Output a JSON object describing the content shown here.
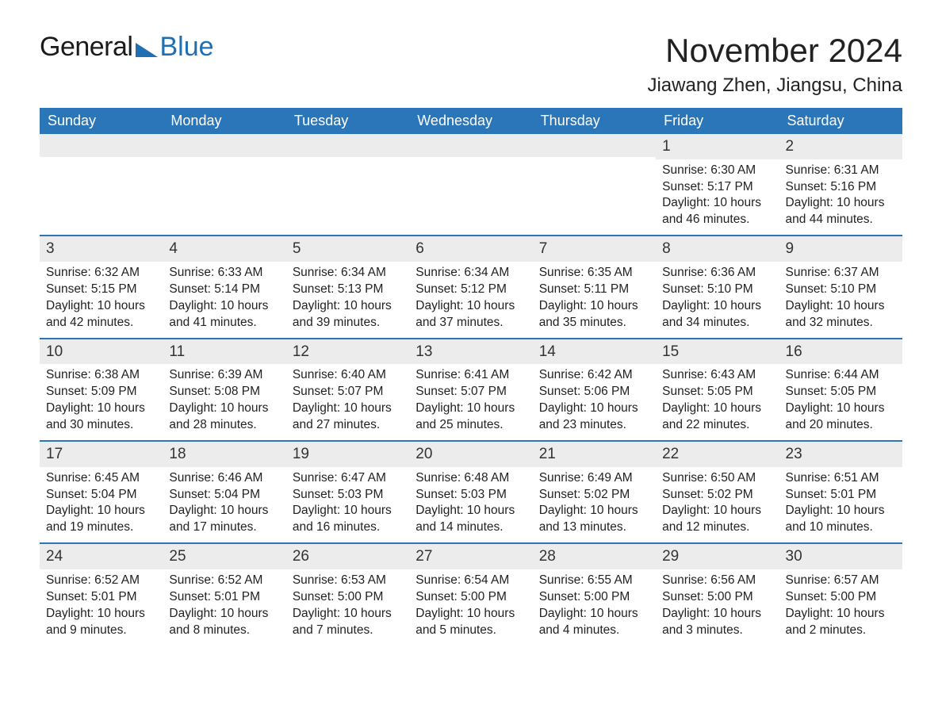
{
  "logo": {
    "text1": "General",
    "text2": "Blue"
  },
  "title": "November 2024",
  "location": "Jiawang Zhen, Jiangsu, China",
  "colors": {
    "header_bg": "#2a76b8",
    "header_text": "#ffffff",
    "row_border": "#2a76b8",
    "daynum_bg": "#ececec",
    "body_text": "#222222",
    "logo_blue": "#1f6fb2"
  },
  "dayNames": [
    "Sunday",
    "Monday",
    "Tuesday",
    "Wednesday",
    "Thursday",
    "Friday",
    "Saturday"
  ],
  "weeks": [
    [
      {
        "empty": true
      },
      {
        "empty": true
      },
      {
        "empty": true
      },
      {
        "empty": true
      },
      {
        "empty": true
      },
      {
        "num": "1",
        "sunrise": "Sunrise: 6:30 AM",
        "sunset": "Sunset: 5:17 PM",
        "daylight": "Daylight: 10 hours and 46 minutes."
      },
      {
        "num": "2",
        "sunrise": "Sunrise: 6:31 AM",
        "sunset": "Sunset: 5:16 PM",
        "daylight": "Daylight: 10 hours and 44 minutes."
      }
    ],
    [
      {
        "num": "3",
        "sunrise": "Sunrise: 6:32 AM",
        "sunset": "Sunset: 5:15 PM",
        "daylight": "Daylight: 10 hours and 42 minutes."
      },
      {
        "num": "4",
        "sunrise": "Sunrise: 6:33 AM",
        "sunset": "Sunset: 5:14 PM",
        "daylight": "Daylight: 10 hours and 41 minutes."
      },
      {
        "num": "5",
        "sunrise": "Sunrise: 6:34 AM",
        "sunset": "Sunset: 5:13 PM",
        "daylight": "Daylight: 10 hours and 39 minutes."
      },
      {
        "num": "6",
        "sunrise": "Sunrise: 6:34 AM",
        "sunset": "Sunset: 5:12 PM",
        "daylight": "Daylight: 10 hours and 37 minutes."
      },
      {
        "num": "7",
        "sunrise": "Sunrise: 6:35 AM",
        "sunset": "Sunset: 5:11 PM",
        "daylight": "Daylight: 10 hours and 35 minutes."
      },
      {
        "num": "8",
        "sunrise": "Sunrise: 6:36 AM",
        "sunset": "Sunset: 5:10 PM",
        "daylight": "Daylight: 10 hours and 34 minutes."
      },
      {
        "num": "9",
        "sunrise": "Sunrise: 6:37 AM",
        "sunset": "Sunset: 5:10 PM",
        "daylight": "Daylight: 10 hours and 32 minutes."
      }
    ],
    [
      {
        "num": "10",
        "sunrise": "Sunrise: 6:38 AM",
        "sunset": "Sunset: 5:09 PM",
        "daylight": "Daylight: 10 hours and 30 minutes."
      },
      {
        "num": "11",
        "sunrise": "Sunrise: 6:39 AM",
        "sunset": "Sunset: 5:08 PM",
        "daylight": "Daylight: 10 hours and 28 minutes."
      },
      {
        "num": "12",
        "sunrise": "Sunrise: 6:40 AM",
        "sunset": "Sunset: 5:07 PM",
        "daylight": "Daylight: 10 hours and 27 minutes."
      },
      {
        "num": "13",
        "sunrise": "Sunrise: 6:41 AM",
        "sunset": "Sunset: 5:07 PM",
        "daylight": "Daylight: 10 hours and 25 minutes."
      },
      {
        "num": "14",
        "sunrise": "Sunrise: 6:42 AM",
        "sunset": "Sunset: 5:06 PM",
        "daylight": "Daylight: 10 hours and 23 minutes."
      },
      {
        "num": "15",
        "sunrise": "Sunrise: 6:43 AM",
        "sunset": "Sunset: 5:05 PM",
        "daylight": "Daylight: 10 hours and 22 minutes."
      },
      {
        "num": "16",
        "sunrise": "Sunrise: 6:44 AM",
        "sunset": "Sunset: 5:05 PM",
        "daylight": "Daylight: 10 hours and 20 minutes."
      }
    ],
    [
      {
        "num": "17",
        "sunrise": "Sunrise: 6:45 AM",
        "sunset": "Sunset: 5:04 PM",
        "daylight": "Daylight: 10 hours and 19 minutes."
      },
      {
        "num": "18",
        "sunrise": "Sunrise: 6:46 AM",
        "sunset": "Sunset: 5:04 PM",
        "daylight": "Daylight: 10 hours and 17 minutes."
      },
      {
        "num": "19",
        "sunrise": "Sunrise: 6:47 AM",
        "sunset": "Sunset: 5:03 PM",
        "daylight": "Daylight: 10 hours and 16 minutes."
      },
      {
        "num": "20",
        "sunrise": "Sunrise: 6:48 AM",
        "sunset": "Sunset: 5:03 PM",
        "daylight": "Daylight: 10 hours and 14 minutes."
      },
      {
        "num": "21",
        "sunrise": "Sunrise: 6:49 AM",
        "sunset": "Sunset: 5:02 PM",
        "daylight": "Daylight: 10 hours and 13 minutes."
      },
      {
        "num": "22",
        "sunrise": "Sunrise: 6:50 AM",
        "sunset": "Sunset: 5:02 PM",
        "daylight": "Daylight: 10 hours and 12 minutes."
      },
      {
        "num": "23",
        "sunrise": "Sunrise: 6:51 AM",
        "sunset": "Sunset: 5:01 PM",
        "daylight": "Daylight: 10 hours and 10 minutes."
      }
    ],
    [
      {
        "num": "24",
        "sunrise": "Sunrise: 6:52 AM",
        "sunset": "Sunset: 5:01 PM",
        "daylight": "Daylight: 10 hours and 9 minutes."
      },
      {
        "num": "25",
        "sunrise": "Sunrise: 6:52 AM",
        "sunset": "Sunset: 5:01 PM",
        "daylight": "Daylight: 10 hours and 8 minutes."
      },
      {
        "num": "26",
        "sunrise": "Sunrise: 6:53 AM",
        "sunset": "Sunset: 5:00 PM",
        "daylight": "Daylight: 10 hours and 7 minutes."
      },
      {
        "num": "27",
        "sunrise": "Sunrise: 6:54 AM",
        "sunset": "Sunset: 5:00 PM",
        "daylight": "Daylight: 10 hours and 5 minutes."
      },
      {
        "num": "28",
        "sunrise": "Sunrise: 6:55 AM",
        "sunset": "Sunset: 5:00 PM",
        "daylight": "Daylight: 10 hours and 4 minutes."
      },
      {
        "num": "29",
        "sunrise": "Sunrise: 6:56 AM",
        "sunset": "Sunset: 5:00 PM",
        "daylight": "Daylight: 10 hours and 3 minutes."
      },
      {
        "num": "30",
        "sunrise": "Sunrise: 6:57 AM",
        "sunset": "Sunset: 5:00 PM",
        "daylight": "Daylight: 10 hours and 2 minutes."
      }
    ]
  ]
}
